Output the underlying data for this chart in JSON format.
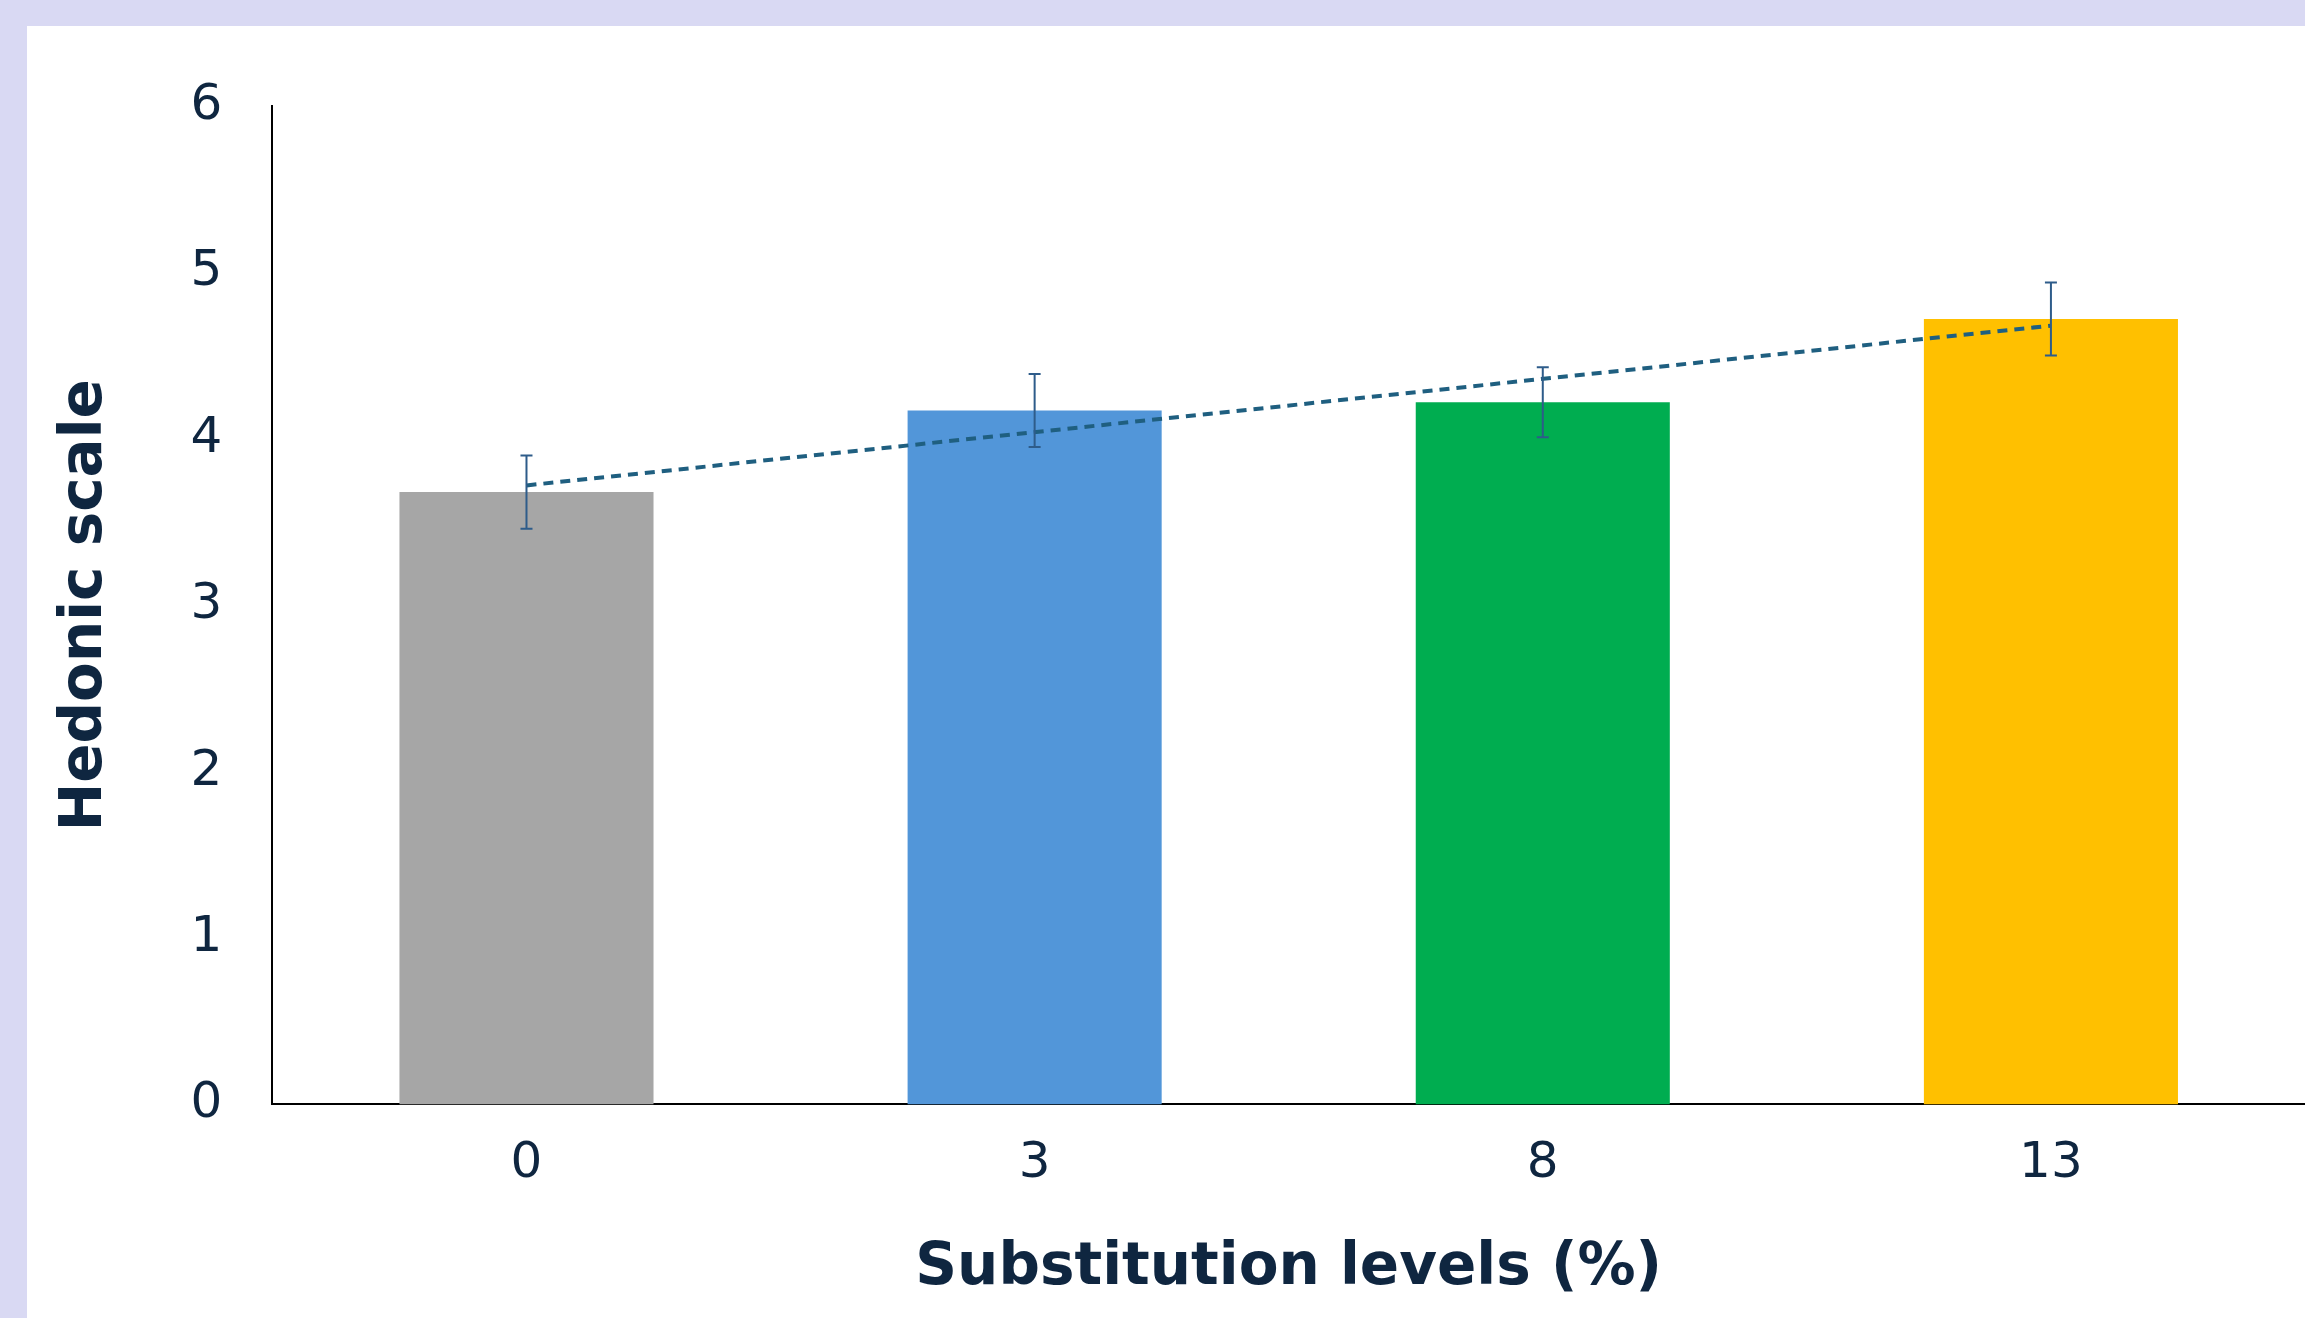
{
  "chart_data": {
    "type": "bar",
    "xlabel": "Substitution levels (%)",
    "ylabel": "Hedonic scale",
    "categories": [
      "0",
      "3",
      "8",
      "13"
    ],
    "series": [
      {
        "colors": [
          "#a6a6a6",
          "#5296d9",
          "#00ad50",
          "#ffc000"
        ],
        "values": [
          3.68,
          4.17,
          4.22,
          4.72
        ],
        "errors": [
          0.22,
          0.22,
          0.21,
          0.22
        ]
      },
      {
        "type": "line",
        "x": [
          "0",
          "13"
        ],
        "values": [
          3.72,
          4.68
        ],
        "color": "#1f5f80",
        "line_style": "dashed",
        "marker": "none"
      }
    ],
    "ylim": [
      0,
      6
    ],
    "yticks": [
      0,
      1,
      2,
      3,
      4,
      5,
      6
    ],
    "grid": false,
    "legend": false
  }
}
